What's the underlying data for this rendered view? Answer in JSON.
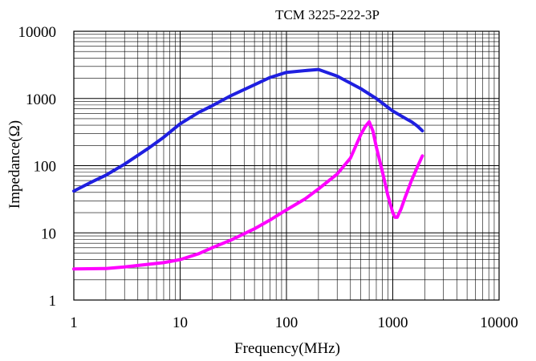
{
  "chart_data": {
    "type": "line",
    "title": "TCM 3225-222-3P",
    "xlabel": "Frequency(MHz)",
    "ylabel": "Impedance(Ω)",
    "x_scale": "log",
    "y_scale": "log",
    "xlim": [
      1,
      10000
    ],
    "ylim": [
      1,
      10000
    ],
    "x_ticks": [
      "1",
      "10",
      "100",
      "1000",
      "10000"
    ],
    "y_ticks": [
      "1",
      "10",
      "100",
      "1000",
      "10000"
    ],
    "grid": true,
    "legend": "none",
    "series": [
      {
        "color": "#1f1fe0",
        "x": [
          1,
          1.5,
          2,
          3,
          5,
          7,
          10,
          15,
          20,
          30,
          50,
          70,
          100,
          150,
          200,
          300,
          500,
          700,
          1000,
          1300,
          1500,
          1700,
          1900
        ],
        "y": [
          42,
          58,
          72,
          105,
          180,
          265,
          420,
          620,
          780,
          1100,
          1600,
          2050,
          2450,
          2600,
          2700,
          2150,
          1400,
          1000,
          650,
          510,
          450,
          390,
          330
        ]
      },
      {
        "color": "#ff00ff",
        "x": [
          1,
          2,
          3,
          5,
          7,
          10,
          15,
          20,
          30,
          50,
          70,
          100,
          150,
          200,
          300,
          400,
          500,
          550,
          600,
          650,
          700,
          800,
          900,
          1000,
          1050,
          1100,
          1200,
          1300,
          1500,
          1700,
          1900
        ],
        "y": [
          2.9,
          2.95,
          3.1,
          3.4,
          3.6,
          4.0,
          4.9,
          6.0,
          7.8,
          11.5,
          15.5,
          22,
          32,
          45,
          75,
          130,
          290,
          380,
          450,
          330,
          190,
          80,
          36,
          20,
          17,
          17,
          23,
          33,
          60,
          95,
          140
        ]
      }
    ]
  }
}
